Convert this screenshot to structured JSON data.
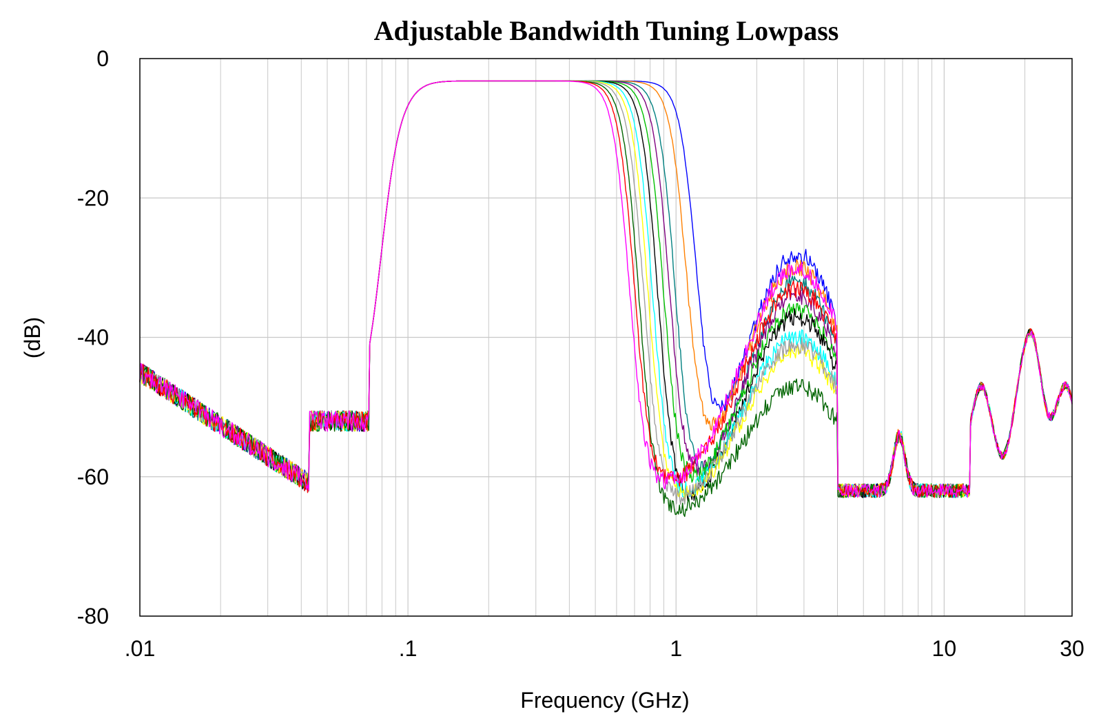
{
  "chart_data": {
    "type": "line",
    "title": "Adjustable Bandwidth Tuning Lowpass",
    "xlabel": "Frequency (GHz)",
    "ylabel": "(dB)",
    "xscale": "log",
    "xlim": [
      0.01,
      30
    ],
    "ylim": [
      -80,
      0
    ],
    "xticks": [
      {
        "value": 0.01,
        "label": ".01"
      },
      {
        "value": 0.1,
        "label": ".1"
      },
      {
        "value": 1,
        "label": "1"
      },
      {
        "value": 10,
        "label": "10"
      },
      {
        "value": 30,
        "label": "30"
      }
    ],
    "yticks": [
      {
        "value": 0,
        "label": "0"
      },
      {
        "value": -20,
        "label": "-20"
      },
      {
        "value": -40,
        "label": "-40"
      },
      {
        "value": -60,
        "label": "-60"
      },
      {
        "value": -80,
        "label": "-80"
      }
    ],
    "grid": true,
    "legend": "none",
    "series": [
      {
        "color": "#0000ff",
        "cutoff": 1.2,
        "stop": -28,
        "floor": -67
      },
      {
        "color": "#ff8000",
        "cutoff": 1.1,
        "stop": -30,
        "floor": -65
      },
      {
        "color": "#008080",
        "cutoff": 1.0,
        "stop": -32,
        "floor": -69
      },
      {
        "color": "#800080",
        "cutoff": 0.95,
        "stop": -34,
        "floor": -67
      },
      {
        "color": "#00c000",
        "cutoff": 0.9,
        "stop": -36,
        "floor": -66
      },
      {
        "color": "#000000",
        "cutoff": 0.86,
        "stop": -37,
        "floor": -68
      },
      {
        "color": "#00ffff",
        "cutoff": 0.82,
        "stop": -40,
        "floor": -66
      },
      {
        "color": "#ffff00",
        "cutoff": 0.79,
        "stop": -42,
        "floor": -66
      },
      {
        "color": "#a0a0a0",
        "cutoff": 0.76,
        "stop": -41,
        "floor": -66
      },
      {
        "color": "#006400",
        "cutoff": 0.73,
        "stop": -47,
        "floor": -67
      },
      {
        "color": "#ff0000",
        "cutoff": 0.7,
        "stop": -33,
        "floor": -63
      },
      {
        "color": "#ff00ff",
        "cutoff": 0.67,
        "stop": -30,
        "floor": -63
      }
    ]
  }
}
